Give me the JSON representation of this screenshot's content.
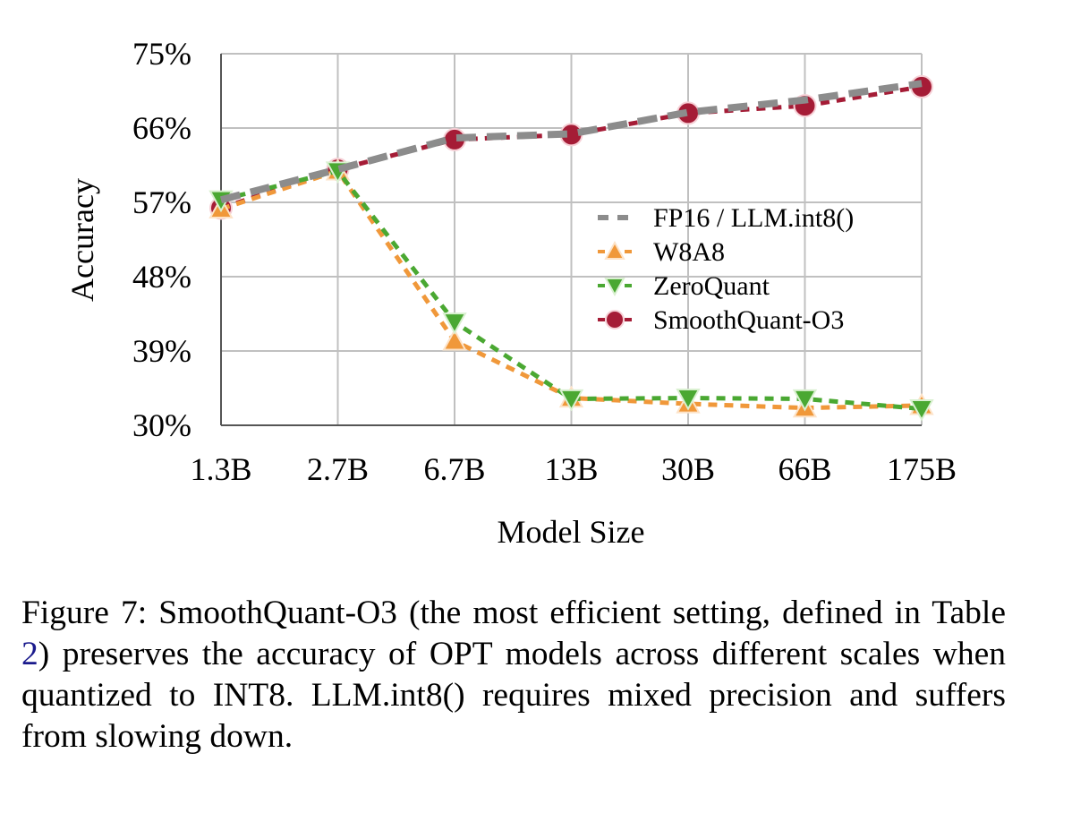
{
  "chart_data": {
    "type": "line",
    "title": "",
    "xlabel": "Model Size",
    "ylabel": "Accuracy",
    "categories": [
      "1.3B",
      "2.7B",
      "6.7B",
      "13B",
      "30B",
      "66B",
      "175B"
    ],
    "ylim": [
      30,
      75
    ],
    "yticks": [
      30,
      39,
      48,
      57,
      66,
      75
    ],
    "ytick_labels": [
      "30%",
      "39%",
      "48%",
      "57%",
      "66%",
      "75%"
    ],
    "grid": true,
    "legend_position": "center-right",
    "series": [
      {
        "name": "FP16 / LLM.int8()",
        "color": "#8c8c8c",
        "marker": "none",
        "style": "dashed-thick",
        "values": [
          57.3,
          61.0,
          64.8,
          65.3,
          67.9,
          69.4,
          71.4
        ]
      },
      {
        "name": "W8A8",
        "color": "#f0983a",
        "marker": "triangle-up",
        "style": "dotted",
        "values": [
          56.2,
          60.8,
          40.2,
          33.3,
          32.6,
          32.1,
          32.4
        ]
      },
      {
        "name": "ZeroQuant",
        "color": "#4aa832",
        "marker": "triangle-down",
        "style": "dotted",
        "values": [
          57.3,
          60.8,
          42.5,
          33.2,
          33.3,
          33.2,
          32.0
        ]
      },
      {
        "name": "SmoothQuant-O3",
        "color": "#a51c36",
        "marker": "circle",
        "style": "dotted",
        "values": [
          56.3,
          61.0,
          64.6,
          65.2,
          67.8,
          68.7,
          71.0
        ]
      }
    ]
  },
  "caption": {
    "prefix": "Figure 7: SmoothQuant-O3 (the most efficient setting, defined in Table ",
    "ref": "2",
    "suffix": ") preserves the accuracy of OPT models across different scales when quantized to INT8. LLM.int8() requires mixed precision and suffers from slowing down."
  }
}
